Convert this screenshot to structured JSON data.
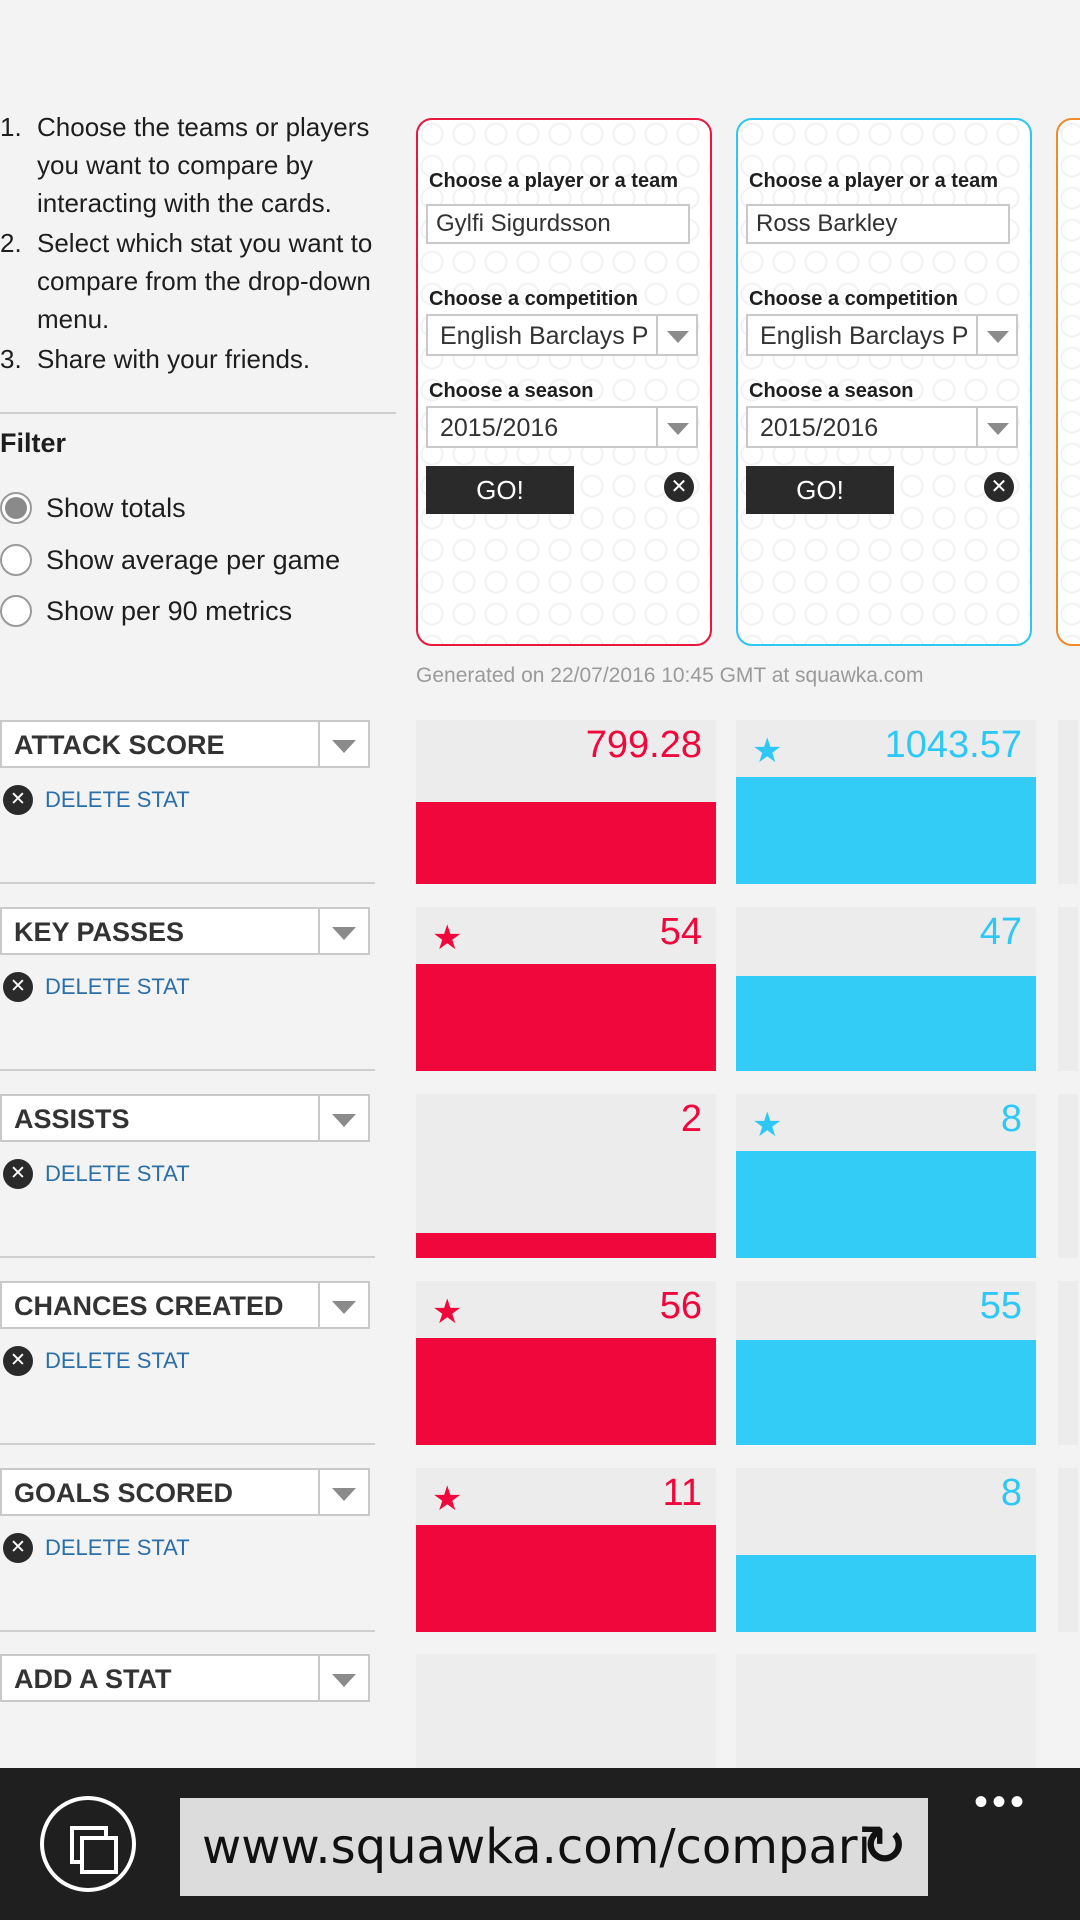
{
  "instructions": [
    {
      "num": "1.",
      "text": "Choose the teams or players you want to compare by interacting with the cards."
    },
    {
      "num": "2.",
      "text": "Select which stat you want to compare from the drop-down menu."
    },
    {
      "num": "3.",
      "text": "Share with your friends."
    }
  ],
  "filter": {
    "title": "Filter",
    "options": [
      {
        "label": "Show totals",
        "checked": true
      },
      {
        "label": "Show average per game",
        "checked": false
      },
      {
        "label": "Show per 90 metrics",
        "checked": false
      }
    ]
  },
  "cards": [
    {
      "color": "#e8173d",
      "player_label": "Choose a player or a team",
      "player_value": "Gylfi Sigurdsson",
      "competition_label": "Choose a competition",
      "competition_value": "English Barclays P",
      "season_label": "Choose a season",
      "season_value": "2015/2016",
      "go_label": "GO!"
    },
    {
      "color": "#2dc6f5",
      "player_label": "Choose a player or a team",
      "player_value": "Ross Barkley",
      "competition_label": "Choose a competition",
      "competition_value": "English Barclays P",
      "season_label": "Choose a season",
      "season_value": "2015/2016",
      "go_label": "GO!"
    }
  ],
  "generated_text": "Generated on 22/07/2016 10:45 GMT at squawka.com",
  "delete_label": "DELETE STAT",
  "stats": [
    {
      "name": "ATTACK SCORE",
      "red": {
        "value": "799.28",
        "star": false,
        "fill": 0.5
      },
      "blue": {
        "value": "1043.57",
        "star": true,
        "fill": 0.65
      }
    },
    {
      "name": "KEY PASSES",
      "red": {
        "value": "54",
        "star": true,
        "fill": 0.65
      },
      "blue": {
        "value": "47",
        "star": false,
        "fill": 0.58
      }
    },
    {
      "name": "ASSISTS",
      "red": {
        "value": "2",
        "star": false,
        "fill": 0.15
      },
      "blue": {
        "value": "8",
        "star": true,
        "fill": 0.65
      }
    },
    {
      "name": "CHANCES CREATED",
      "red": {
        "value": "56",
        "star": true,
        "fill": 0.65
      },
      "blue": {
        "value": "55",
        "star": false,
        "fill": 0.64
      }
    },
    {
      "name": "GOALS SCORED",
      "red": {
        "value": "11",
        "star": true,
        "fill": 0.65
      },
      "blue": {
        "value": "8",
        "star": false,
        "fill": 0.47
      }
    }
  ],
  "add_stat_label": "ADD A STAT",
  "browser": {
    "url": "www.squawka.com/compari",
    "refresh_icon": "↻",
    "more_icon": "•••"
  }
}
